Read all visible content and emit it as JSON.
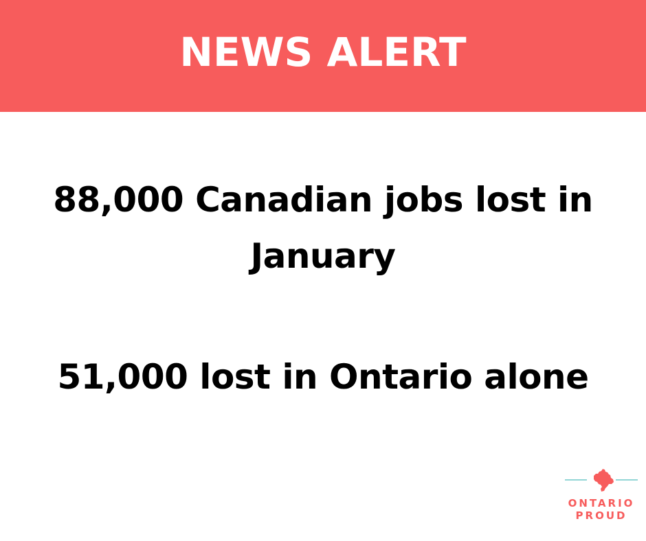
{
  "banner": {
    "title": "NEWS ALERT",
    "color": "#f75c5c"
  },
  "headline_1": {
    "line_1": "88,000 Canadian jobs lost in",
    "line_2": "January"
  },
  "headline_2": {
    "text": "51,000 lost in Ontario alone"
  },
  "logo": {
    "icon": "ontario-map-icon",
    "line_1": "ONTARIO",
    "line_2": "PROUD",
    "accent_color": "#f75c5c",
    "line_color": "#6fc7c7"
  }
}
